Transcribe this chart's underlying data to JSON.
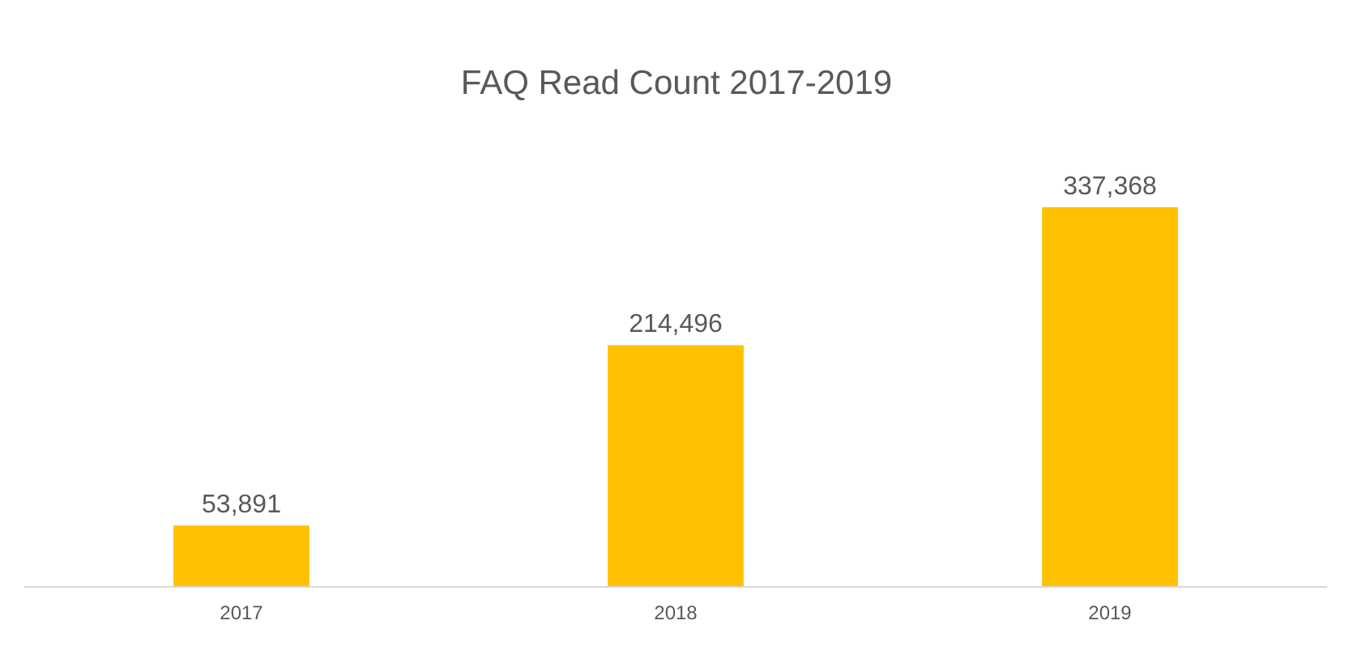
{
  "chart_data": {
    "type": "bar",
    "title": "FAQ Read Count 2017-2019",
    "categories": [
      "2017",
      "2018",
      "2019"
    ],
    "values": [
      53891,
      214496,
      337368
    ],
    "value_labels": [
      "53,891",
      "214,496",
      "337,368"
    ],
    "color": "#ffc000"
  }
}
